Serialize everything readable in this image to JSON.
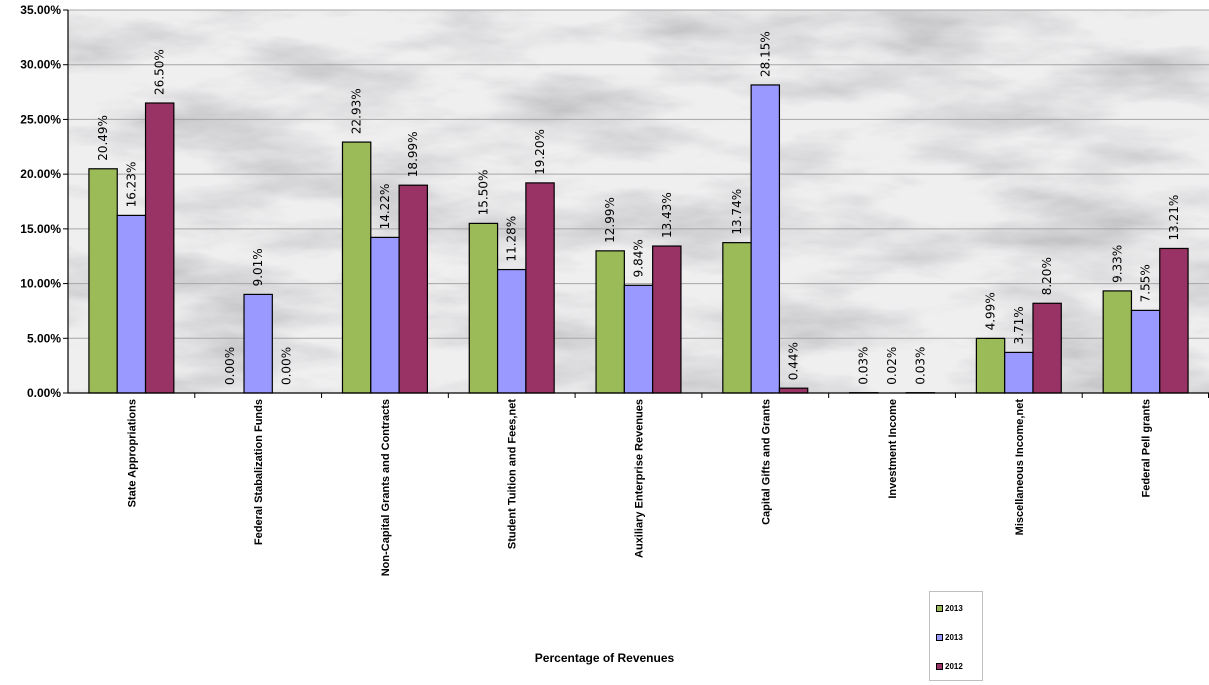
{
  "chart_data": {
    "type": "bar",
    "categories": [
      "State Appropriations",
      "Federal Stabalization Funds",
      "Non-Capital Grants and Contracts",
      "Student Tuition and Fees,net",
      "Auxiliary Enterprise Revenues",
      "Capital Gifts and Grants",
      "Investment Income",
      "Miscellaneous Income,net",
      "Federal Pell grants"
    ],
    "series": [
      {
        "name": "2013",
        "color": "#9bbb59",
        "values": [
          20.49,
          0.0,
          22.93,
          15.5,
          12.99,
          13.74,
          0.03,
          4.99,
          9.33
        ],
        "labels": [
          "20.49%",
          "0.00%",
          "22.93%",
          "15.50%",
          "12.99%",
          "13.74%",
          "0.03%",
          "4.99%",
          "9.33%"
        ]
      },
      {
        "name": "2013",
        "color": "#9999ff",
        "values": [
          16.23,
          9.01,
          14.22,
          11.28,
          9.84,
          28.15,
          0.02,
          3.71,
          7.55
        ],
        "labels": [
          "16.23%",
          "9.01%",
          "14.22%",
          "11.28%",
          "9.84%",
          "28.15%",
          "0.02%",
          "3.71%",
          "7.55%"
        ]
      },
      {
        "name": "2012",
        "color": "#993366",
        "values": [
          26.5,
          0.0,
          18.99,
          19.2,
          13.43,
          0.44,
          0.03,
          8.2,
          13.21
        ],
        "labels": [
          "26.50%",
          "0.00%",
          "18.99%",
          "19.20%",
          "13.43%",
          "0.44%",
          "0.03%",
          "8.20%",
          "13.21%"
        ]
      }
    ],
    "ylim": [
      0,
      35
    ],
    "yticks": [
      0,
      5,
      10,
      15,
      20,
      25,
      30,
      35
    ],
    "ytick_labels": [
      "0.00%",
      "5.00%",
      "10.00%",
      "15.00%",
      "20.00%",
      "25.00%",
      "30.00%",
      "35.00%"
    ],
    "xlabel": "Percentage of Revenues",
    "ylabel": "",
    "title": "",
    "grid": true,
    "legend_position": "bottom-right",
    "plot_background": "marble texture"
  }
}
